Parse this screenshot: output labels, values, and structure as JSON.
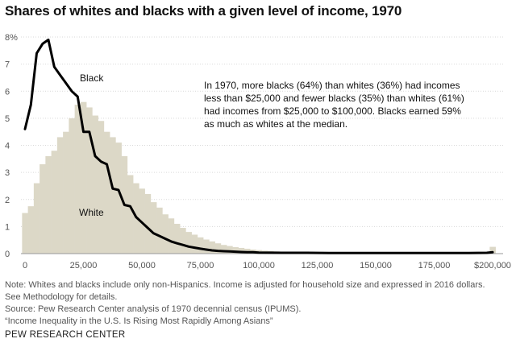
{
  "title": "Shares of whites and blacks with a given level of income, 1970",
  "annotation_lines": [
    "In 1970, more blacks (64%) than whites (36%) had incomes",
    "less than $25,000 and fewer blacks (35%) than whites (61%)",
    "had incomes from $25,000 to $100,000. Blacks earned 59%",
    "as much as whites at the median."
  ],
  "notes": [
    "Note: Whites and blacks include only non-Hispanics. Income is adjusted for household size and expressed in 2016 dollars.",
    "See Methodology for details.",
    "Source: Pew Research Center analysis of 1970 decennial census (IPUMS).",
    "“Income Inequality in the U.S. Is Rising Most Rapidly Among Asians”"
  ],
  "brand": "PEW RESEARCH CENTER",
  "colors": {
    "white_fill": "#dcd8c7",
    "black_line": "#000000",
    "grid": "#d9d9d9"
  },
  "chart_data": {
    "type": "area",
    "xlim": [
      0,
      200000
    ],
    "ylim": [
      0,
      8
    ],
    "x_ticks": [
      0,
      25000,
      50000,
      75000,
      100000,
      125000,
      150000,
      175000,
      200000
    ],
    "x_tick_labels": [
      "0",
      "25,000",
      "50,000",
      "75,000",
      "100,000",
      "125,000",
      "150,000",
      "175,000",
      "$200,000"
    ],
    "y_ticks": [
      0,
      1,
      2,
      3,
      4,
      5,
      6,
      7,
      8
    ],
    "y_tick_labels": [
      "0",
      "1",
      "2",
      "3",
      "4",
      "5",
      "6",
      "7",
      "8%"
    ],
    "series": [
      {
        "name": "White",
        "kind": "histogram",
        "bin_width": 2500,
        "x": [
          0,
          2500,
          5000,
          7500,
          10000,
          12500,
          15000,
          17500,
          20000,
          22500,
          25000,
          27500,
          30000,
          32500,
          35000,
          37500,
          40000,
          42500,
          45000,
          47500,
          50000,
          52500,
          55000,
          57500,
          60000,
          62500,
          65000,
          67500,
          70000,
          72500,
          75000,
          77500,
          80000,
          82500,
          85000,
          87500,
          90000,
          92500,
          95000,
          97500,
          100000,
          102500,
          105000,
          107500,
          110000,
          112500,
          115000,
          117500,
          120000,
          122500,
          125000,
          127500,
          130000,
          132500,
          135000,
          137500,
          140000,
          142500,
          145000,
          147500,
          150000,
          152500,
          155000,
          157500,
          160000,
          162500,
          165000,
          167500,
          170000,
          172500,
          175000,
          177500,
          180000,
          182500,
          185000,
          187500,
          190000,
          192500,
          195000,
          197500,
          200000
        ],
        "values": [
          1.5,
          1.75,
          2.6,
          3.3,
          3.6,
          3.8,
          4.3,
          4.5,
          5.0,
          5.5,
          5.6,
          5.4,
          5.1,
          4.9,
          4.5,
          4.3,
          4.1,
          3.6,
          2.9,
          2.6,
          2.4,
          2.2,
          1.9,
          1.7,
          1.45,
          1.3,
          1.1,
          0.95,
          0.8,
          0.7,
          0.6,
          0.52,
          0.45,
          0.38,
          0.32,
          0.28,
          0.24,
          0.21,
          0.18,
          0.15,
          0.13,
          0.11,
          0.1,
          0.08,
          0.07,
          0.06,
          0.05,
          0.05,
          0.04,
          0.04,
          0.03,
          0.03,
          0.03,
          0.02,
          0.02,
          0.02,
          0.02,
          0.02,
          0.02,
          0.02,
          0.02,
          0.01,
          0.01,
          0.01,
          0.01,
          0.01,
          0.01,
          0.01,
          0.01,
          0.01,
          0.01,
          0.01,
          0.01,
          0.01,
          0.01,
          0.01,
          0.01,
          0.01,
          0.01,
          0.01,
          0.25
        ]
      },
      {
        "name": "Black",
        "kind": "line",
        "x": [
          0,
          2500,
          5000,
          7500,
          10000,
          12500,
          15000,
          17500,
          20000,
          22500,
          25000,
          27500,
          30000,
          32500,
          35000,
          37500,
          40000,
          42500,
          45000,
          47500,
          50000,
          52500,
          55000,
          57500,
          60000,
          62500,
          65000,
          67500,
          70000,
          72500,
          75000,
          77500,
          80000,
          82500,
          85000,
          87500,
          90000,
          92500,
          95000,
          97500,
          100000,
          110000,
          120000,
          130000,
          140000,
          150000,
          160000,
          170000,
          180000,
          190000,
          197500,
          200000
        ],
        "values": [
          4.6,
          5.5,
          7.4,
          7.75,
          7.9,
          6.9,
          6.6,
          6.3,
          6.0,
          5.8,
          4.5,
          4.5,
          3.6,
          3.4,
          3.3,
          2.4,
          2.35,
          1.8,
          1.75,
          1.35,
          1.15,
          0.95,
          0.75,
          0.65,
          0.55,
          0.45,
          0.38,
          0.32,
          0.26,
          0.22,
          0.18,
          0.15,
          0.12,
          0.1,
          0.09,
          0.08,
          0.07,
          0.06,
          0.05,
          0.05,
          0.04,
          0.03,
          0.03,
          0.02,
          0.02,
          0.02,
          0.02,
          0.02,
          0.02,
          0.02,
          0.03,
          0.05
        ]
      }
    ],
    "series_labels": {
      "white": "White",
      "black": "Black"
    }
  }
}
